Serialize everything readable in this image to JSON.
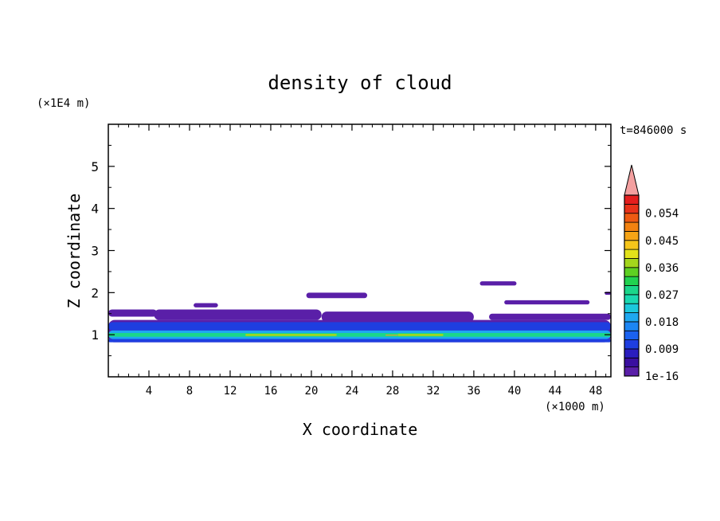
{
  "chart_data": {
    "type": "heatmap",
    "title": "density of cloud",
    "xlabel": "X coordinate",
    "ylabel": "Z coordinate",
    "x_unit": "(×1000 m)",
    "y_unit": "(×1E4 m)",
    "time_label": "t=846000 s",
    "xlim": [
      0,
      49.5
    ],
    "ylim": [
      0,
      6
    ],
    "x_ticks": [
      4,
      8,
      12,
      16,
      20,
      24,
      28,
      32,
      36,
      40,
      44,
      48
    ],
    "y_ticks": [
      1,
      2,
      3,
      4,
      5
    ],
    "colorbar": {
      "labels": [
        "1e-16",
        "0.009",
        "0.018",
        "0.027",
        "0.036",
        "0.045",
        "0.054"
      ],
      "colors": [
        "#5a1fa8",
        "#3a0fa0",
        "#2a1dbf",
        "#1e3ee0",
        "#1a62f0",
        "#1c86f4",
        "#1ea8f0",
        "#1cc8dc",
        "#1ad8b0",
        "#1bd68a",
        "#21d250",
        "#5ed022",
        "#a4d61c",
        "#e2e21a",
        "#f6c61a",
        "#f6a416",
        "#f28210",
        "#ee5a12",
        "#e8321a",
        "#e41e1e"
      ],
      "overflow_color": "#f4a0a0"
    },
    "regions": [
      {
        "level": "1e-16",
        "x": [
          0,
          49.5
        ],
        "z": [
          0.82,
          1.35
        ]
      },
      {
        "level": "1e-16",
        "x": [
          0,
          4.8
        ],
        "z": [
          1.43,
          1.6
        ]
      },
      {
        "level": "1e-16",
        "x": [
          8.4,
          10.8
        ],
        "z": [
          1.65,
          1.75
        ]
      },
      {
        "level": "1e-16",
        "x": [
          4.5,
          21
        ],
        "z": [
          1.35,
          1.6
        ]
      },
      {
        "level": "1e-16",
        "x": [
          19.5,
          25.5
        ],
        "z": [
          1.87,
          2.0
        ]
      },
      {
        "level": "1e-16",
        "x": [
          21,
          36
        ],
        "z": [
          1.3,
          1.55
        ]
      },
      {
        "level": "1e-16",
        "x": [
          36.6,
          40.2
        ],
        "z": [
          2.17,
          2.27
        ]
      },
      {
        "level": "1e-16",
        "x": [
          39,
          47.4
        ],
        "z": [
          1.72,
          1.82
        ]
      },
      {
        "level": "1e-16",
        "x": [
          37.5,
          49.5
        ],
        "z": [
          1.35,
          1.5
        ]
      },
      {
        "level": "1e-16",
        "x": [
          48.9,
          49.5
        ],
        "z": [
          1.95,
          2.02
        ]
      },
      {
        "level": "0.009",
        "x": [
          0,
          49.5
        ],
        "z": [
          1.1,
          1.3
        ]
      },
      {
        "level": "0.009",
        "x": [
          0,
          49.5
        ],
        "z": [
          0.82,
          0.9
        ]
      },
      {
        "level": "0.018",
        "x": [
          0,
          49.5
        ],
        "z": [
          0.9,
          1.1
        ]
      },
      {
        "level": "0.027",
        "x": [
          0,
          49.5
        ],
        "z": [
          0.95,
          1.04
        ]
      },
      {
        "level": "0.036",
        "x": [
          13.5,
          22.5
        ],
        "z": [
          0.97,
          1.02
        ]
      },
      {
        "level": "0.036",
        "x": [
          28.5,
          33
        ],
        "z": [
          0.97,
          1.02
        ]
      },
      {
        "level": "0.045",
        "x": [
          27.3,
          28.5
        ],
        "z": [
          0.98,
          1.0
        ]
      }
    ]
  }
}
